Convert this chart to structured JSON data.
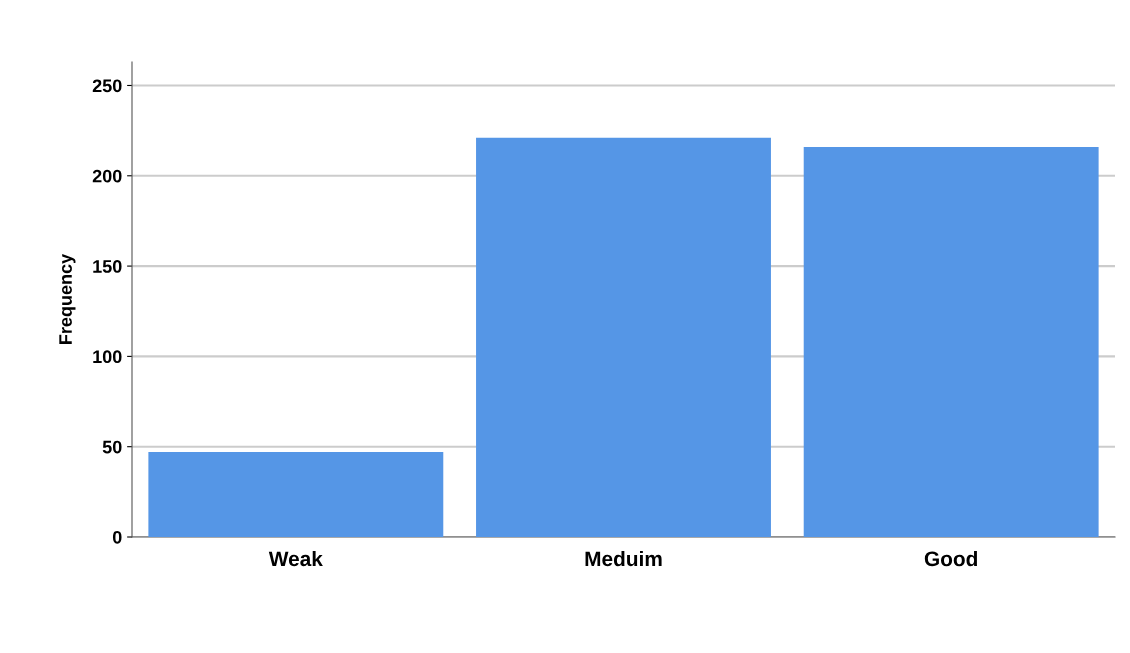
{
  "chart_data": {
    "type": "bar",
    "ylabel": "Frequency",
    "categories": [
      "Weak",
      "Meduim",
      "Good"
    ],
    "values": [
      47,
      221,
      216
    ],
    "color": "#5596e6",
    "ylim": [
      0,
      263
    ],
    "yticks": [
      0,
      50,
      100,
      150,
      200,
      250
    ],
    "grid": "y",
    "legend": false
  }
}
